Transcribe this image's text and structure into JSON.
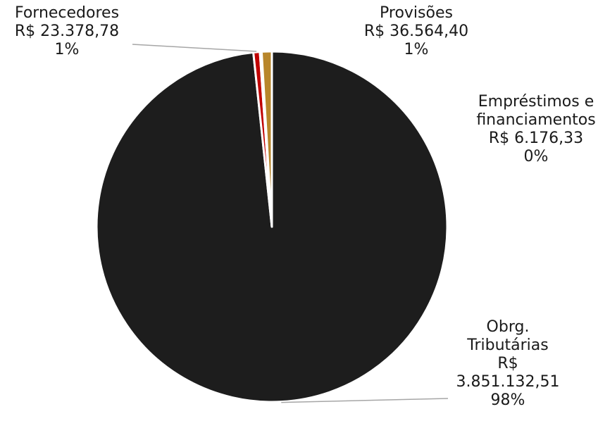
{
  "chart_data": {
    "type": "pie",
    "title": "",
    "slices": [
      {
        "label_lines": [
          "Obrg.",
          "Tributárias",
          "R$",
          "3.851.132,51",
          "98%"
        ],
        "value": 3851132.51,
        "color": "#1d1d1d"
      },
      {
        "label_lines": [
          "Fornecedores",
          "R$ 23.378,78",
          "1%"
        ],
        "value": 23378.78,
        "color": "#c00000"
      },
      {
        "label_lines": [
          "Empréstimos e",
          "financiamentos",
          "R$ 6.176,33",
          "0%"
        ],
        "value": 6176.33,
        "color": "#7f7f7f"
      },
      {
        "label_lines": [
          "Provisões",
          "R$ 36.564,40",
          "1%"
        ],
        "value": 36564.4,
        "color": "#b8862b"
      }
    ],
    "start_angle_deg": 0,
    "direction": "clockwise"
  }
}
